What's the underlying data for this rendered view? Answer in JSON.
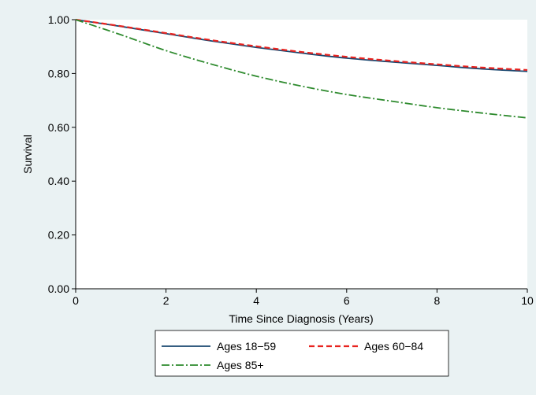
{
  "chart_data": {
    "type": "line",
    "xlabel": "Time Since Diagnosis (Years)",
    "ylabel": "Survival",
    "xlim": [
      0,
      10
    ],
    "ylim": [
      0,
      1
    ],
    "x_ticks": [
      "0",
      "2",
      "4",
      "6",
      "8",
      "10"
    ],
    "y_ticks": [
      "0.00",
      "0.20",
      "0.40",
      "0.60",
      "0.80",
      "1.00"
    ],
    "grid": false,
    "legend_position": "bottom",
    "x": [
      0,
      1,
      2,
      3,
      4,
      5,
      6,
      7,
      8,
      9,
      10
    ],
    "series": [
      {
        "name": "Ages 18−59",
        "color": "#1a476f",
        "style": "solid",
        "values": [
          1.0,
          0.975,
          0.948,
          0.921,
          0.897,
          0.876,
          0.857,
          0.843,
          0.83,
          0.817,
          0.808
        ]
      },
      {
        "name": "Ages 60−84",
        "color": "#e8231f",
        "style": "dash",
        "values": [
          1.0,
          0.976,
          0.95,
          0.924,
          0.901,
          0.88,
          0.862,
          0.847,
          0.834,
          0.822,
          0.813
        ]
      },
      {
        "name": "Ages 85+",
        "color": "#2d8a2d",
        "style": "dashdot",
        "values": [
          1.0,
          0.944,
          0.885,
          0.835,
          0.79,
          0.753,
          0.722,
          0.697,
          0.673,
          0.653,
          0.635
        ]
      }
    ]
  }
}
